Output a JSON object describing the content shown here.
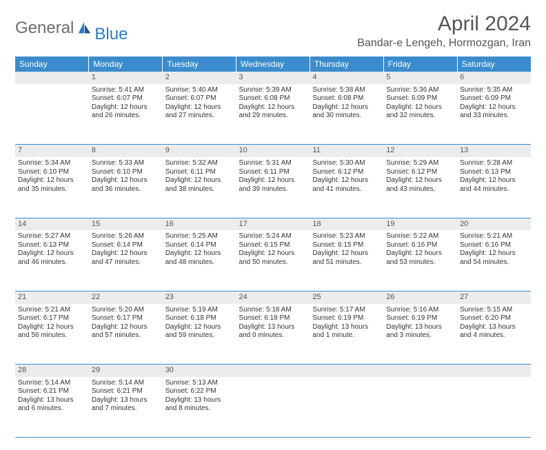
{
  "logo": {
    "text1": "General",
    "text2": "Blue"
  },
  "title": "April 2024",
  "location": "Bandar-e Lengeh, Hormozgan, Iran",
  "colors": {
    "header_bg": "#3b8ccc",
    "header_fg": "#ffffff",
    "daynum_bg": "#ececec",
    "text": "#333333",
    "title": "#555555",
    "divider": "#3b8ccc"
  },
  "typography": {
    "month_fontsize": 30,
    "location_fontsize": 16,
    "dayheader_fontsize": 12,
    "cell_fontsize": 10
  },
  "day_headers": [
    "Sunday",
    "Monday",
    "Tuesday",
    "Wednesday",
    "Thursday",
    "Friday",
    "Saturday"
  ],
  "weeks": [
    [
      {
        "num": "",
        "lines": []
      },
      {
        "num": "1",
        "lines": [
          "Sunrise: 5:41 AM",
          "Sunset: 6:07 PM",
          "Daylight: 12 hours",
          "and 26 minutes."
        ]
      },
      {
        "num": "2",
        "lines": [
          "Sunrise: 5:40 AM",
          "Sunset: 6:07 PM",
          "Daylight: 12 hours",
          "and 27 minutes."
        ]
      },
      {
        "num": "3",
        "lines": [
          "Sunrise: 5:39 AM",
          "Sunset: 6:08 PM",
          "Daylight: 12 hours",
          "and 29 minutes."
        ]
      },
      {
        "num": "4",
        "lines": [
          "Sunrise: 5:38 AM",
          "Sunset: 6:08 PM",
          "Daylight: 12 hours",
          "and 30 minutes."
        ]
      },
      {
        "num": "5",
        "lines": [
          "Sunrise: 5:36 AM",
          "Sunset: 6:09 PM",
          "Daylight: 12 hours",
          "and 32 minutes."
        ]
      },
      {
        "num": "6",
        "lines": [
          "Sunrise: 5:35 AM",
          "Sunset: 6:09 PM",
          "Daylight: 12 hours",
          "and 33 minutes."
        ]
      }
    ],
    [
      {
        "num": "7",
        "lines": [
          "Sunrise: 5:34 AM",
          "Sunset: 6:10 PM",
          "Daylight: 12 hours",
          "and 35 minutes."
        ]
      },
      {
        "num": "8",
        "lines": [
          "Sunrise: 5:33 AM",
          "Sunset: 6:10 PM",
          "Daylight: 12 hours",
          "and 36 minutes."
        ]
      },
      {
        "num": "9",
        "lines": [
          "Sunrise: 5:32 AM",
          "Sunset: 6:11 PM",
          "Daylight: 12 hours",
          "and 38 minutes."
        ]
      },
      {
        "num": "10",
        "lines": [
          "Sunrise: 5:31 AM",
          "Sunset: 6:11 PM",
          "Daylight: 12 hours",
          "and 39 minutes."
        ]
      },
      {
        "num": "11",
        "lines": [
          "Sunrise: 5:30 AM",
          "Sunset: 6:12 PM",
          "Daylight: 12 hours",
          "and 41 minutes."
        ]
      },
      {
        "num": "12",
        "lines": [
          "Sunrise: 5:29 AM",
          "Sunset: 6:12 PM",
          "Daylight: 12 hours",
          "and 43 minutes."
        ]
      },
      {
        "num": "13",
        "lines": [
          "Sunrise: 5:28 AM",
          "Sunset: 6:13 PM",
          "Daylight: 12 hours",
          "and 44 minutes."
        ]
      }
    ],
    [
      {
        "num": "14",
        "lines": [
          "Sunrise: 5:27 AM",
          "Sunset: 6:13 PM",
          "Daylight: 12 hours",
          "and 46 minutes."
        ]
      },
      {
        "num": "15",
        "lines": [
          "Sunrise: 5:26 AM",
          "Sunset: 6:14 PM",
          "Daylight: 12 hours",
          "and 47 minutes."
        ]
      },
      {
        "num": "16",
        "lines": [
          "Sunrise: 5:25 AM",
          "Sunset: 6:14 PM",
          "Daylight: 12 hours",
          "and 48 minutes."
        ]
      },
      {
        "num": "17",
        "lines": [
          "Sunrise: 5:24 AM",
          "Sunset: 6:15 PM",
          "Daylight: 12 hours",
          "and 50 minutes."
        ]
      },
      {
        "num": "18",
        "lines": [
          "Sunrise: 5:23 AM",
          "Sunset: 6:15 PM",
          "Daylight: 12 hours",
          "and 51 minutes."
        ]
      },
      {
        "num": "19",
        "lines": [
          "Sunrise: 5:22 AM",
          "Sunset: 6:16 PM",
          "Daylight: 12 hours",
          "and 53 minutes."
        ]
      },
      {
        "num": "20",
        "lines": [
          "Sunrise: 5:21 AM",
          "Sunset: 6:16 PM",
          "Daylight: 12 hours",
          "and 54 minutes."
        ]
      }
    ],
    [
      {
        "num": "21",
        "lines": [
          "Sunrise: 5:21 AM",
          "Sunset: 6:17 PM",
          "Daylight: 12 hours",
          "and 56 minutes."
        ]
      },
      {
        "num": "22",
        "lines": [
          "Sunrise: 5:20 AM",
          "Sunset: 6:17 PM",
          "Daylight: 12 hours",
          "and 57 minutes."
        ]
      },
      {
        "num": "23",
        "lines": [
          "Sunrise: 5:19 AM",
          "Sunset: 6:18 PM",
          "Daylight: 12 hours",
          "and 59 minutes."
        ]
      },
      {
        "num": "24",
        "lines": [
          "Sunrise: 5:18 AM",
          "Sunset: 6:18 PM",
          "Daylight: 13 hours",
          "and 0 minutes."
        ]
      },
      {
        "num": "25",
        "lines": [
          "Sunrise: 5:17 AM",
          "Sunset: 6:19 PM",
          "Daylight: 13 hours",
          "and 1 minute."
        ]
      },
      {
        "num": "26",
        "lines": [
          "Sunrise: 5:16 AM",
          "Sunset: 6:19 PM",
          "Daylight: 13 hours",
          "and 3 minutes."
        ]
      },
      {
        "num": "27",
        "lines": [
          "Sunrise: 5:15 AM",
          "Sunset: 6:20 PM",
          "Daylight: 13 hours",
          "and 4 minutes."
        ]
      }
    ],
    [
      {
        "num": "28",
        "lines": [
          "Sunrise: 5:14 AM",
          "Sunset: 6:21 PM",
          "Daylight: 13 hours",
          "and 6 minutes."
        ]
      },
      {
        "num": "29",
        "lines": [
          "Sunrise: 5:14 AM",
          "Sunset: 6:21 PM",
          "Daylight: 13 hours",
          "and 7 minutes."
        ]
      },
      {
        "num": "30",
        "lines": [
          "Sunrise: 5:13 AM",
          "Sunset: 6:22 PM",
          "Daylight: 13 hours",
          "and 8 minutes."
        ]
      },
      {
        "num": "",
        "lines": []
      },
      {
        "num": "",
        "lines": []
      },
      {
        "num": "",
        "lines": []
      },
      {
        "num": "",
        "lines": []
      }
    ]
  ]
}
